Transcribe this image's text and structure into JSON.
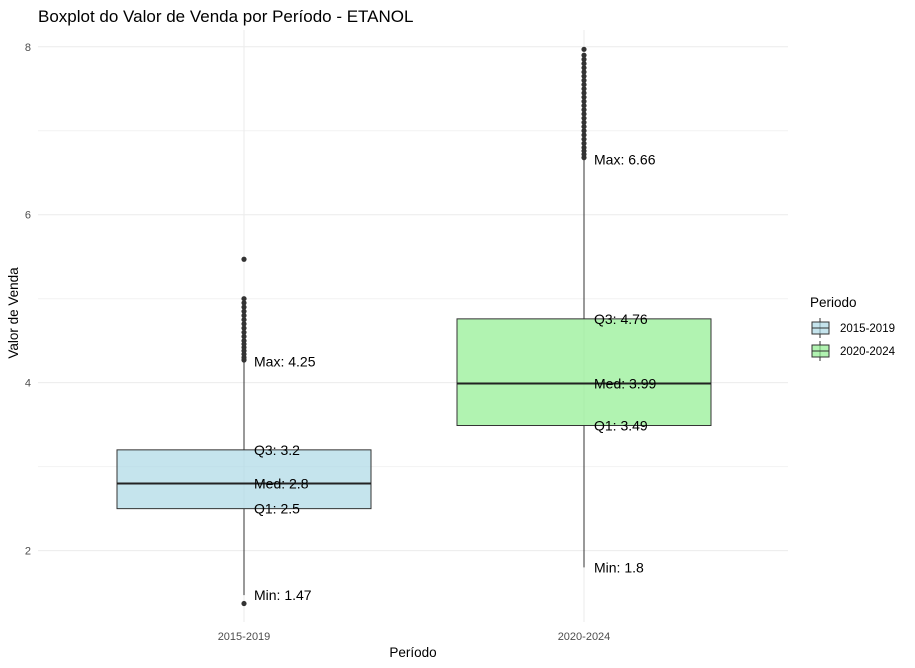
{
  "chart_data": {
    "type": "boxplot",
    "title": "Boxplot do Valor de Venda por Período - ETANOL",
    "xlabel": "Período",
    "ylabel": "Valor de Venda",
    "ylim": [
      1.15,
      8.2
    ],
    "yticks": [
      2,
      4,
      6,
      8
    ],
    "grid": true,
    "legend": {
      "title": "Periodo",
      "position": "right"
    },
    "categories": [
      "2015-2019",
      "2020-2024"
    ],
    "series": [
      {
        "name": "2015-2019",
        "color": "#ADD8E6",
        "min": 1.47,
        "q1": 2.5,
        "median": 2.8,
        "q3": 3.2,
        "max": 4.25,
        "whisker_low": 1.47,
        "whisker_high": 4.25,
        "outliers": [
          1.37,
          4.27,
          4.3,
          4.34,
          4.38,
          4.42,
          4.46,
          4.5,
          4.55,
          4.6,
          4.65,
          4.7,
          4.75,
          4.8,
          4.85,
          4.9,
          4.95,
          5.0,
          5.47
        ],
        "labels": [
          "Max: 4.25",
          "Q3: 3.2",
          "Med: 2.8",
          "Q1: 2.5",
          "Min: 1.47"
        ]
      },
      {
        "name": "2020-2024",
        "color": "#90EE90",
        "min": 1.8,
        "q1": 3.49,
        "median": 3.99,
        "q3": 4.76,
        "max": 6.66,
        "whisker_low": 1.8,
        "whisker_high": 6.66,
        "outliers": [
          6.68,
          6.72,
          6.76,
          6.8,
          6.85,
          6.9,
          6.95,
          7.0,
          7.05,
          7.1,
          7.15,
          7.2,
          7.25,
          7.3,
          7.35,
          7.4,
          7.45,
          7.5,
          7.55,
          7.6,
          7.65,
          7.7,
          7.75,
          7.8,
          7.85,
          7.9,
          7.97
        ],
        "labels": [
          "Max: 6.66",
          "Q3: 4.76",
          "Med: 3.99",
          "Q1: 3.49",
          "Min: 1.8"
        ]
      }
    ]
  }
}
